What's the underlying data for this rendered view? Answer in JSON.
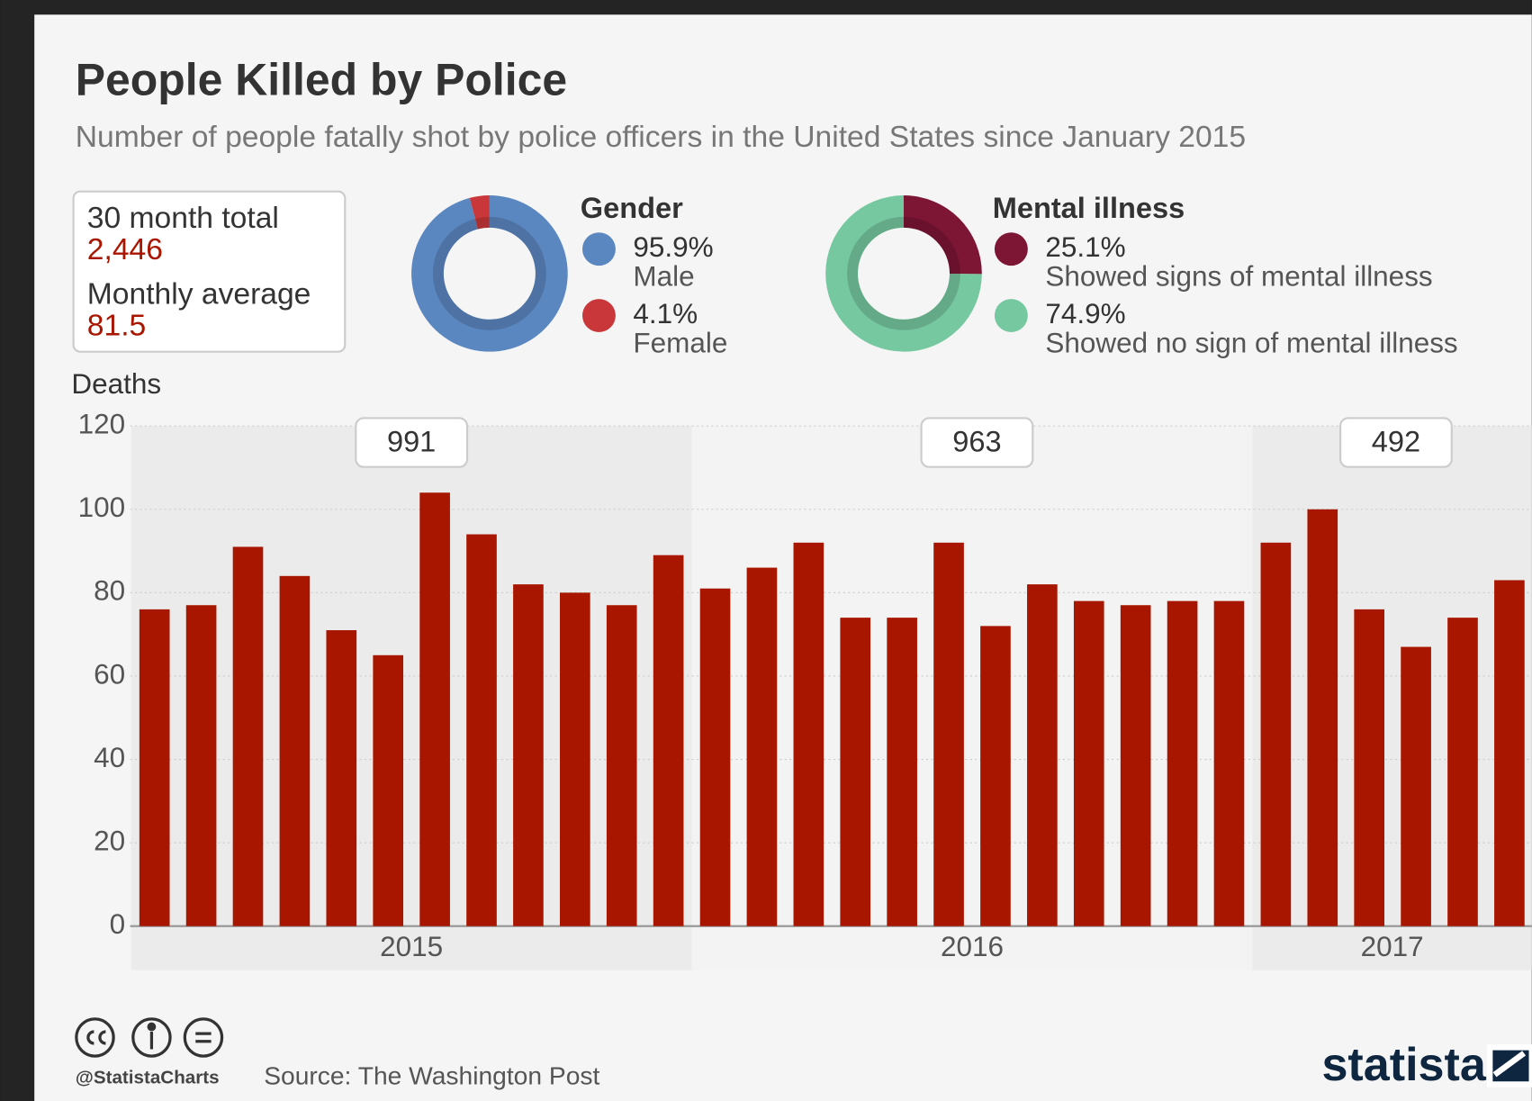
{
  "chart_data": [
    {
      "type": "bar",
      "title": "People Killed by Police",
      "subtitle": "Number of people fatally shot by police officers in the United States since January 2015",
      "y_label": "Deaths",
      "color": "#a91600",
      "ylim": [
        0,
        120
      ],
      "yticks": [
        0,
        20,
        40,
        60,
        80,
        100,
        120
      ],
      "grid": true,
      "groups": [
        {
          "label": "2015",
          "total": 991,
          "values": [
            76,
            77,
            91,
            84,
            71,
            65,
            104,
            94,
            82,
            80,
            77,
            89
          ]
        },
        {
          "label": "2016",
          "total": 963,
          "values": [
            81,
            86,
            92,
            74,
            74,
            92,
            72,
            82,
            78,
            77,
            78,
            78
          ]
        },
        {
          "label": "2017",
          "total": 492,
          "values": [
            92,
            100,
            76,
            67,
            74,
            83
          ]
        }
      ]
    },
    {
      "type": "pie",
      "title": "Gender",
      "categories": [
        "Male",
        "Female"
      ],
      "values": [
        95.9,
        4.1
      ],
      "value_labels": [
        "95.9%",
        "4.1%"
      ],
      "colors": [
        "#5b87c0",
        "#c9373a"
      ]
    },
    {
      "type": "pie",
      "title": "Mental illness",
      "categories": [
        "Showed signs of mental illness",
        "Showed no sign of mental illness"
      ],
      "values": [
        25.1,
        74.9
      ],
      "value_labels": [
        "25.1%",
        "74.9%"
      ],
      "colors": [
        "#7d1535",
        "#76c8a0"
      ]
    }
  ],
  "summary": [
    {
      "label": "30 month total",
      "value": "2,446"
    },
    {
      "label": "Monthly average",
      "value": "81.5"
    }
  ],
  "footer": {
    "handle": "@StatistaCharts",
    "source": "Source: The Washington Post",
    "brand": "statista"
  }
}
